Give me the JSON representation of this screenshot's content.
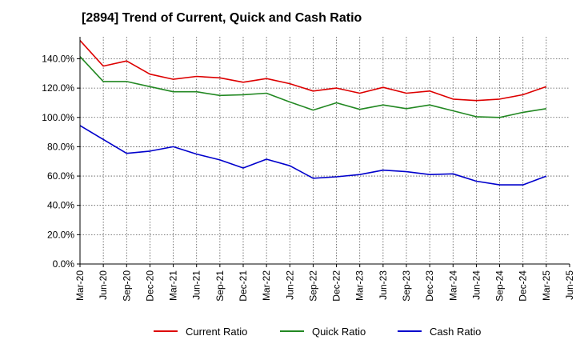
{
  "chart_data": {
    "type": "line",
    "title": "[2894]  Trend of Current, Quick and Cash Ratio",
    "xlabel": "",
    "ylabel": "",
    "ylim": [
      0,
      155
    ],
    "y_ticks": [
      "0.0%",
      "20.0%",
      "40.0%",
      "60.0%",
      "80.0%",
      "100.0%",
      "120.0%",
      "140.0%"
    ],
    "y_tick_values": [
      0,
      20,
      40,
      60,
      80,
      100,
      120,
      140
    ],
    "x_ticks": [
      "Mar-20",
      "Jun-20",
      "Sep-20",
      "Dec-20",
      "Mar-21",
      "Jun-21",
      "Sep-21",
      "Dec-21",
      "Mar-22",
      "Jun-22",
      "Sep-22",
      "Dec-22",
      "Mar-23",
      "Jun-23",
      "Sep-23",
      "Dec-23",
      "Mar-24",
      "Jun-24",
      "Sep-24",
      "Dec-24",
      "Mar-25",
      "Jun-25"
    ],
    "categories": [
      "Mar-20",
      "Jun-20",
      "Sep-20",
      "Dec-20",
      "Mar-21",
      "Jun-21",
      "Sep-21",
      "Dec-21",
      "Mar-22",
      "Jun-22",
      "Sep-22",
      "Dec-22",
      "Mar-23",
      "Jun-23",
      "Sep-23",
      "Dec-23",
      "Mar-24",
      "Jun-24",
      "Sep-24",
      "Dec-24",
      "Mar-25"
    ],
    "grid": true,
    "legend_position": "bottom",
    "series": [
      {
        "name": "Current Ratio",
        "color": "#dd0000",
        "values": [
          152.5,
          135.0,
          138.5,
          129.5,
          126.0,
          128.0,
          127.0,
          124.0,
          126.5,
          123.0,
          118.0,
          120.0,
          116.5,
          120.5,
          116.5,
          118.0,
          112.5,
          111.5,
          112.5,
          115.5,
          121.0
        ]
      },
      {
        "name": "Quick Ratio",
        "color": "#228822",
        "values": [
          141.5,
          124.5,
          124.5,
          121.0,
          117.5,
          117.5,
          115.0,
          115.5,
          116.5,
          110.5,
          105.0,
          110.0,
          105.5,
          108.5,
          106.0,
          108.5,
          104.5,
          100.5,
          100.0,
          103.5,
          106.0
        ]
      },
      {
        "name": "Cash Ratio",
        "color": "#0000cc",
        "values": [
          94.5,
          85.0,
          75.5,
          77.0,
          80.0,
          75.0,
          71.0,
          65.5,
          71.5,
          67.0,
          58.5,
          59.5,
          61.0,
          64.0,
          63.0,
          61.0,
          61.5,
          56.5,
          54.0,
          54.0,
          60.0
        ]
      }
    ]
  }
}
